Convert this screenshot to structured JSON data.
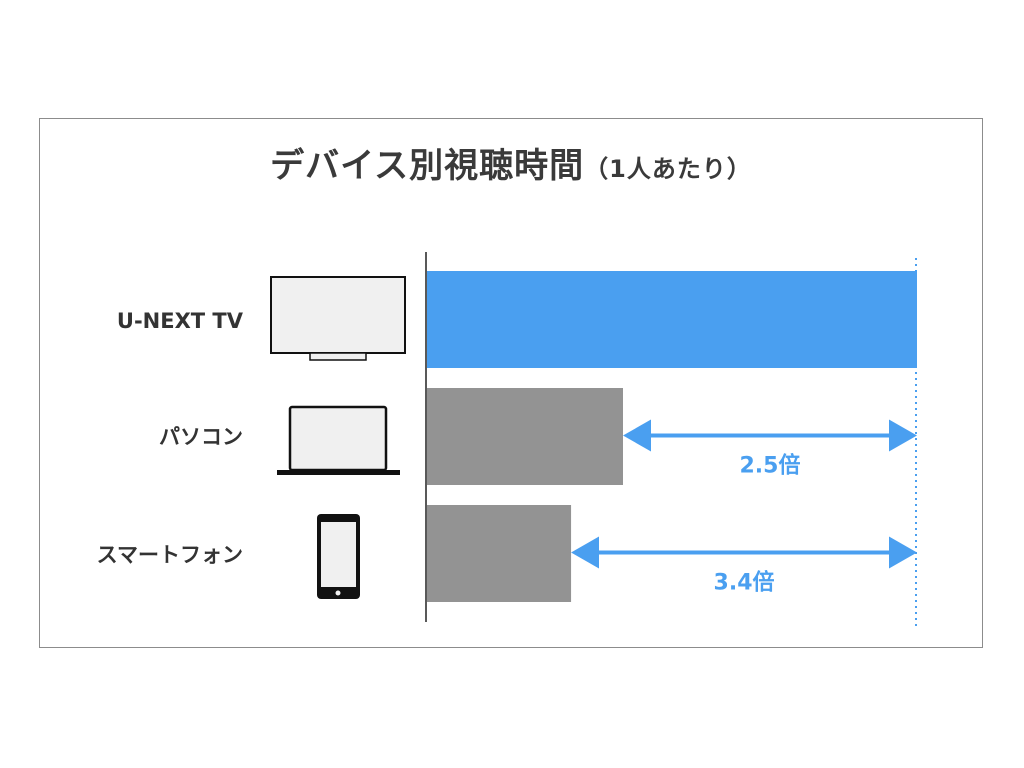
{
  "title": "デバイス別視聴時間",
  "subtitle": "（1人あたり）",
  "colors": {
    "highlight": "#4a9ff0",
    "muted": "#939393",
    "axis": "#222222",
    "text": "#333333"
  },
  "chart_data": {
    "type": "bar",
    "orientation": "horizontal",
    "title": "デバイス別視聴時間（1人あたり）",
    "categories": [
      "U-NEXT TV",
      "パソコン",
      "スマートフォン"
    ],
    "icons": [
      "tv-icon",
      "laptop-icon",
      "smartphone-icon"
    ],
    "values": [
      1.0,
      0.4,
      0.294
    ],
    "value_unit": "relative to U-NEXT TV",
    "annotations": [
      {
        "category": "パソコン",
        "text": "2.5倍"
      },
      {
        "category": "スマートフォン",
        "text": "3.4倍"
      }
    ],
    "xlim": [
      0,
      1
    ]
  }
}
